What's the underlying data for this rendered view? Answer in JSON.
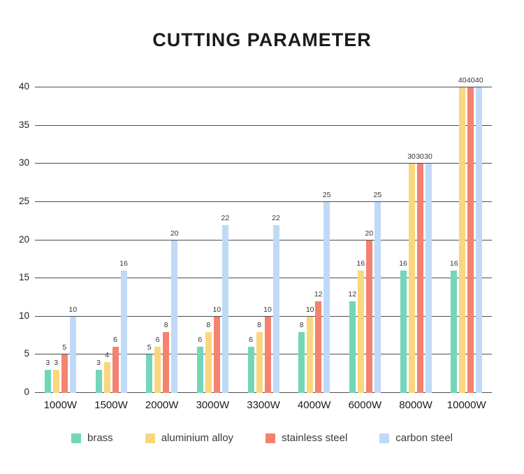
{
  "title": "CUTTING PARAMETER",
  "chart_data": {
    "type": "bar",
    "title": "CUTTING PARAMETER",
    "categories": [
      "1000W",
      "1500W",
      "2000W",
      "3000W",
      "3300W",
      "4000W",
      "6000W",
      "8000W",
      "10000W"
    ],
    "series": [
      {
        "name": "brass",
        "color": "#72d6b9",
        "values": [
          3,
          3,
          5,
          6,
          6,
          8,
          12,
          16,
          16
        ]
      },
      {
        "name": "aluminium alloy",
        "color": "#f9d77e",
        "values": [
          3,
          4,
          6,
          8,
          8,
          10,
          16,
          30,
          40
        ]
      },
      {
        "name": "stainless steel",
        "color": "#f3826f",
        "values": [
          5,
          6,
          8,
          10,
          10,
          12,
          20,
          30,
          40
        ]
      },
      {
        "name": "carbon steel",
        "color": "#bfdaf6",
        "values": [
          10,
          16,
          20,
          22,
          22,
          25,
          25,
          30,
          40
        ]
      }
    ],
    "xlabel": "",
    "ylabel": "",
    "ylim": [
      0,
      40
    ],
    "yticks": [
      0,
      5,
      10,
      15,
      20,
      25,
      30,
      35,
      40
    ],
    "grid": true,
    "legend_position": "bottom",
    "value_labels": true
  }
}
